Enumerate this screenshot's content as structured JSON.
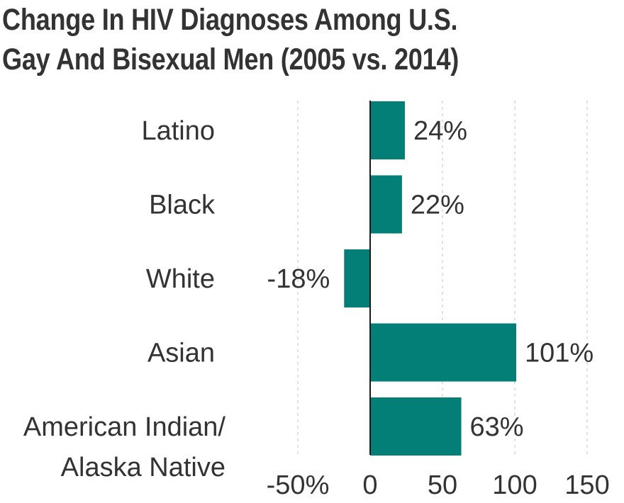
{
  "title_lines": [
    "Change In HIV Diagnoses Among U.S.",
    "Gay And Bisexual Men (2005 vs. 2014)"
  ],
  "chart_data": {
    "type": "bar",
    "orientation": "horizontal",
    "title": "Change In HIV Diagnoses Among U.S. Gay And Bisexual Men (2005 vs. 2014)",
    "categories": [
      [
        "Latino"
      ],
      [
        "Black"
      ],
      [
        "White"
      ],
      [
        "Asian"
      ],
      [
        "American Indian/",
        "Alaska Native"
      ]
    ],
    "values": [
      24,
      22,
      -18,
      101,
      63
    ],
    "value_labels": [
      "24%",
      "22%",
      "-18%",
      "101%",
      "63%"
    ],
    "xlim": [
      -50,
      150
    ],
    "xticks": [
      -50,
      0,
      50,
      100,
      150
    ],
    "xtick_labels": [
      "-50%",
      "0",
      "50",
      "100",
      "150"
    ],
    "grid": true,
    "bar_color": "#037f78",
    "text_color": "#333333"
  }
}
